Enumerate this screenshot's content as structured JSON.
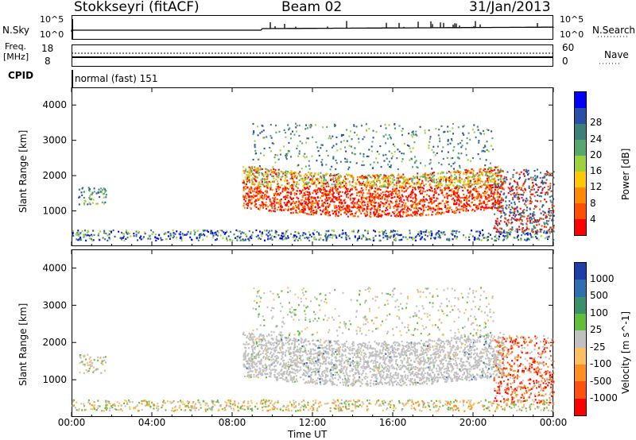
{
  "header": {
    "station": "Stokkseyri (fitACF)",
    "beam": "Beam 02",
    "date": "31/Jan/2013"
  },
  "noise_panel": {
    "label_left": "N.Sky",
    "tick_top": "10^5",
    "tick_bottom": "10^0",
    "label_right": "N.Search",
    "right_tick_top": "10^5",
    "right_tick_bottom": "10^0"
  },
  "freq_panel": {
    "label_left_1": "Freq.",
    "label_left_2": "[MHz]",
    "tick_top": "18",
    "tick_bottom": "8",
    "right_tick_top": "60",
    "right_tick_bottom": "0",
    "label_right": "Nave"
  },
  "cpid_panel": {
    "label": "CPID",
    "value": "normal (fast) 151"
  },
  "chart_data": [
    {
      "type": "heatmap",
      "name": "power",
      "ylabel": "Slant Range [km]",
      "yticks": [
        "1000",
        "2000",
        "3000",
        "4000"
      ],
      "ylim": [
        0,
        4500
      ],
      "colorbar_label": "Power [dB]",
      "colorbar_ticks": [
        "4",
        "8",
        "12",
        "16",
        "20",
        "24",
        "28"
      ],
      "colors": [
        "#0000ff",
        "#2a4fa8",
        "#3f7f7a",
        "#55a86e",
        "#9ed13c",
        "#ffc800",
        "#ff8a00",
        "#ff5000",
        "#ff0000"
      ]
    },
    {
      "type": "heatmap",
      "name": "velocity",
      "ylabel": "Slant Range [km]",
      "yticks": [
        "1000",
        "2000",
        "3000",
        "4000"
      ],
      "ylim": [
        0,
        4500
      ],
      "colorbar_label": "Velocity [m s^-1]",
      "colorbar_ticks": [
        "1000",
        "500",
        "100",
        "25",
        "-25",
        "-100",
        "-500",
        "-1000"
      ],
      "colors": [
        "#1f3fa8",
        "#2e6fb0",
        "#3b8f6a",
        "#5fbf3a",
        "#c0c0c0",
        "#ffc060",
        "#ff9020",
        "#ff5010",
        "#ff0000"
      ]
    }
  ],
  "xaxis": {
    "label": "Time UT",
    "ticks": [
      "00:00",
      "04:00",
      "08:00",
      "12:00",
      "16:00",
      "20:00",
      "00:00"
    ]
  }
}
